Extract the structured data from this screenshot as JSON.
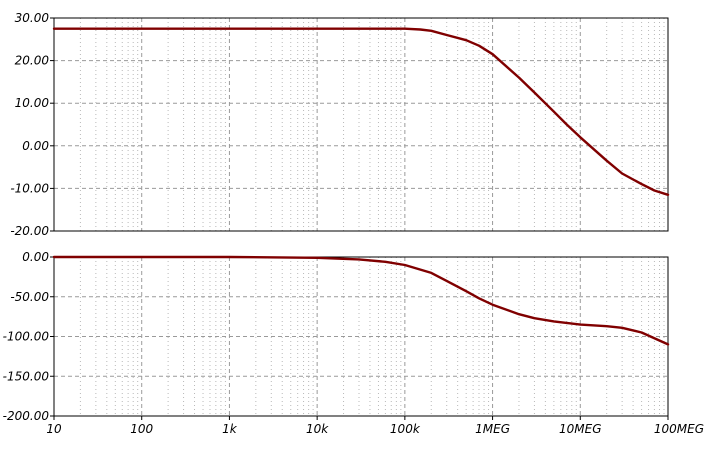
{
  "chart_data": [
    {
      "type": "line",
      "title": "",
      "xlabel": "",
      "ylabel": "",
      "x_scale": "log",
      "xlim": [
        10,
        100000000
      ],
      "ylim": [
        -20,
        30
      ],
      "grid": true,
      "y_ticks": [
        "30.00",
        "20.00",
        "10.00",
        "0.00",
        "-10.00",
        "-20.00"
      ],
      "y_tick_values": [
        30,
        20,
        10,
        0,
        -10,
        -20
      ],
      "series": [
        {
          "color": "#800000",
          "x": [
            10,
            1000,
            100000,
            150000,
            200000,
            300000,
            500000,
            700000,
            1000000,
            2000000,
            3000000,
            5000000,
            7000000,
            10000000,
            20000000,
            30000000,
            50000000,
            70000000,
            100000000
          ],
          "y": [
            27.5,
            27.5,
            27.5,
            27.3,
            27.0,
            26.0,
            24.8,
            23.5,
            21.5,
            16.0,
            12.5,
            8.0,
            5.0,
            2.0,
            -3.5,
            -6.5,
            -9.0,
            -10.5,
            -11.5
          ]
        }
      ]
    },
    {
      "type": "line",
      "title": "",
      "xlabel": "",
      "ylabel": "",
      "x_scale": "log",
      "xlim": [
        10,
        100000000
      ],
      "ylim": [
        -200,
        0
      ],
      "grid": true,
      "y_ticks": [
        "0.00",
        "-50.00",
        "-100.00",
        "-150.00",
        "-200.00"
      ],
      "y_tick_values": [
        0,
        -50,
        -100,
        -150,
        -200
      ],
      "x_ticks": [
        "10",
        "100",
        "1k",
        "10k",
        "100k",
        "1MEG",
        "10MEG",
        "100MEG"
      ],
      "x_tick_values": [
        10,
        100,
        1000,
        10000,
        100000,
        1000000,
        10000000,
        100000000
      ],
      "series": [
        {
          "color": "#800000",
          "x": [
            10,
            1000,
            10000,
            30000,
            60000,
            100000,
            200000,
            300000,
            500000,
            700000,
            1000000,
            2000000,
            3000000,
            5000000,
            10000000,
            20000000,
            30000000,
            50000000,
            100000000
          ],
          "y": [
            0,
            0,
            -1,
            -3,
            -6,
            -10,
            -20,
            -30,
            -43,
            -52,
            -60,
            -72,
            -77,
            -81,
            -85,
            -87,
            -89,
            -95,
            -110
          ]
        }
      ]
    }
  ]
}
